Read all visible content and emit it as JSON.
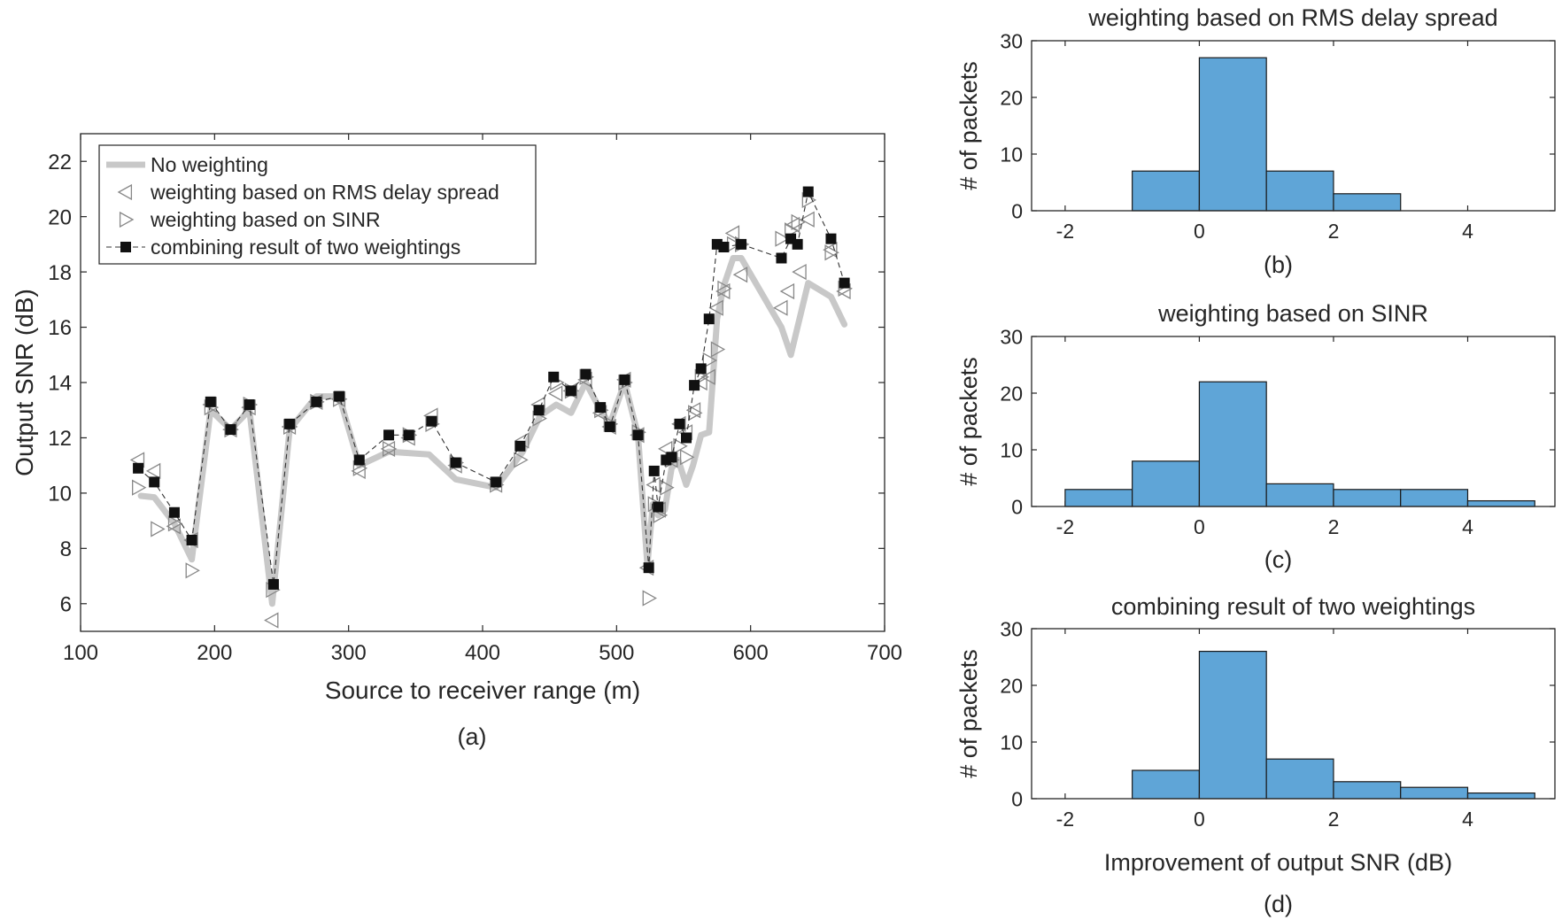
{
  "chart_data": [
    {
      "id": "a",
      "type": "line",
      "caption": "(a)",
      "title": "",
      "xlabel": "Source to receiver range (m)",
      "ylabel": "Output SNR (dB)",
      "xlim": [
        100,
        700
      ],
      "ylim": [
        5,
        23
      ],
      "xticks": [
        100,
        200,
        300,
        400,
        500,
        600,
        700
      ],
      "yticks": [
        6,
        8,
        10,
        12,
        14,
        16,
        18,
        20,
        22
      ],
      "series": [
        {
          "name": "No weighting",
          "style": "thick-line",
          "color": "#c8c8c8",
          "x": [
            145,
            155,
            170,
            183,
            197,
            212,
            226,
            243,
            256,
            276,
            293,
            308,
            330,
            360,
            380,
            410,
            430,
            443,
            455,
            466,
            477,
            488,
            495,
            506,
            516,
            523,
            527,
            531,
            536,
            541,
            546,
            552,
            557,
            563,
            569,
            575,
            580,
            587,
            593,
            623,
            630,
            643,
            660,
            670
          ],
          "y": [
            9.9,
            9.85,
            8.9,
            7.6,
            13.0,
            12.3,
            13.0,
            6.0,
            12.3,
            13.5,
            13.5,
            11.0,
            11.5,
            11.4,
            10.5,
            10.2,
            11.5,
            12.8,
            13.2,
            12.9,
            14.0,
            13.0,
            12.5,
            14.0,
            12.1,
            7.4,
            9.6,
            9.2,
            9.4,
            10.9,
            11.2,
            10.3,
            11.0,
            12.1,
            12.2,
            16.3,
            17.5,
            18.5,
            18.5,
            16.0,
            15.0,
            17.6,
            17.1,
            16.1
          ]
        },
        {
          "name": "weighting based on RMS delay spread",
          "style": "left-triangle",
          "color": "#888888",
          "x": [
            143,
            155,
            170,
            183,
            197,
            212,
            226,
            243,
            256,
            276,
            293,
            308,
            330,
            345,
            362,
            380,
            410,
            430,
            442,
            455,
            466,
            477,
            488,
            495,
            506,
            516,
            523,
            528,
            532,
            537,
            541,
            547,
            552,
            558,
            563,
            569,
            575,
            580,
            587,
            593,
            623,
            628,
            632,
            637,
            643,
            660,
            670
          ],
          "y": [
            11.2,
            10.8,
            8.8,
            8.3,
            13.2,
            12.3,
            13.1,
            5.4,
            12.4,
            13.3,
            13.4,
            10.8,
            11.6,
            12.0,
            12.8,
            11.0,
            10.3,
            11.9,
            13.2,
            13.6,
            13.7,
            14.1,
            12.9,
            12.4,
            14.1,
            12.1,
            7.3,
            10.3,
            9.4,
            11.6,
            11.2,
            12.5,
            12.2,
            13.0,
            14.0,
            14.2,
            16.7,
            17.3,
            19.4,
            17.9,
            16.7,
            17.3,
            19.7,
            18.0,
            19.9,
            18.8,
            17.3
          ]
        },
        {
          "name": "weighting based on SINR",
          "style": "right-triangle",
          "color": "#888888",
          "x": [
            143,
            157,
            170,
            183,
            197,
            212,
            226,
            243,
            256,
            276,
            293,
            308,
            330,
            345,
            362,
            380,
            410,
            428,
            442,
            455,
            466,
            477,
            488,
            495,
            506,
            516,
            524,
            528,
            532,
            537,
            541,
            547,
            552,
            558,
            563,
            569,
            575,
            580,
            587,
            593,
            623,
            630,
            635,
            643,
            660,
            670
          ],
          "y": [
            10.2,
            8.7,
            8.9,
            7.2,
            13.1,
            12.3,
            13.2,
            6.5,
            12.4,
            13.3,
            13.4,
            10.9,
            11.6,
            12.1,
            12.5,
            11.1,
            10.3,
            11.2,
            12.7,
            14.0,
            13.7,
            14.2,
            13.0,
            12.5,
            14.0,
            12.2,
            6.2,
            9.6,
            9.2,
            10.2,
            11.2,
            11.7,
            11.3,
            12.9,
            14.2,
            14.8,
            15.2,
            17.4,
            19.0,
            19.0,
            19.2,
            19.5,
            19.8,
            20.6,
            18.7,
            17.4
          ]
        },
        {
          "name": "combining result of two weightings",
          "style": "dashed-square",
          "color": "#111111",
          "x": [
            143,
            155,
            170,
            183,
            197,
            212,
            226,
            244,
            256,
            276,
            293,
            308,
            330,
            345,
            362,
            380,
            410,
            428,
            442,
            453,
            466,
            477,
            488,
            495,
            506,
            516,
            524,
            528,
            531,
            537,
            541,
            547,
            552,
            558,
            563,
            569,
            575,
            580,
            593,
            623,
            630,
            635,
            643,
            660,
            670
          ],
          "y": [
            10.9,
            10.4,
            9.3,
            8.3,
            13.3,
            12.3,
            13.2,
            6.7,
            12.5,
            13.3,
            13.5,
            11.2,
            12.1,
            12.1,
            12.6,
            11.1,
            10.4,
            11.7,
            13.0,
            14.2,
            13.7,
            14.3,
            13.1,
            12.4,
            14.1,
            12.1,
            7.3,
            10.8,
            9.5,
            11.2,
            11.3,
            12.5,
            12.0,
            13.9,
            14.5,
            16.3,
            19.0,
            18.9,
            19.0,
            18.5,
            19.2,
            19.0,
            20.9,
            19.2,
            17.6
          ]
        }
      ]
    },
    {
      "id": "b",
      "type": "bar",
      "caption": "(b)",
      "title": "weighting based on RMS delay spread",
      "xlabel": "",
      "ylabel": "# of packets",
      "xlim": [
        -2.5,
        5.3
      ],
      "ylim": [
        0,
        30
      ],
      "xticks": [
        -2,
        0,
        2,
        4
      ],
      "yticks": [
        0,
        10,
        20,
        30
      ],
      "bin_edges": [
        -1,
        0,
        1,
        2,
        3
      ],
      "values": [
        7,
        27,
        7,
        3
      ],
      "color": "#5fa5d7"
    },
    {
      "id": "c",
      "type": "bar",
      "caption": "(c)",
      "title": "weighting based on SINR",
      "xlabel": "",
      "ylabel": "# of packets",
      "xlim": [
        -2.5,
        5.3
      ],
      "ylim": [
        0,
        30
      ],
      "xticks": [
        -2,
        0,
        2,
        4
      ],
      "yticks": [
        0,
        10,
        20,
        30
      ],
      "bin_edges": [
        -2,
        -1,
        0,
        1,
        2,
        3,
        4,
        5
      ],
      "values": [
        3,
        8,
        22,
        4,
        3,
        3,
        1
      ],
      "color": "#5fa5d7"
    },
    {
      "id": "d",
      "type": "bar",
      "caption": "(d)",
      "title": "combining result of two weightings",
      "xlabel": "Improvement of output SNR (dB)",
      "ylabel": "# of packets",
      "xlim": [
        -2.5,
        5.3
      ],
      "ylim": [
        0,
        30
      ],
      "xticks": [
        -2,
        0,
        2,
        4
      ],
      "yticks": [
        0,
        10,
        20,
        30
      ],
      "bin_edges": [
        -2,
        -1,
        0,
        1,
        2,
        3,
        4,
        5
      ],
      "values": [
        0,
        5,
        26,
        7,
        3,
        2,
        1
      ],
      "color": "#5fa5d7"
    }
  ]
}
